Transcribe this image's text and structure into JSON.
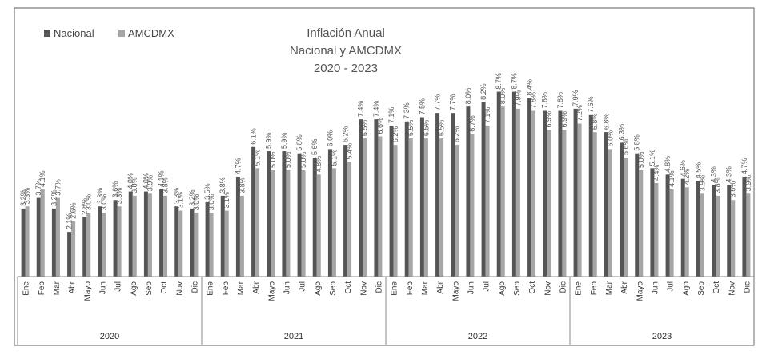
{
  "chart_data": {
    "type": "bar",
    "title": [
      "Inflación Anual",
      "Nacional y AMCDMX",
      "2020 - 2023"
    ],
    "legend": {
      "position": "top-left"
    },
    "years": [
      "2020",
      "2021",
      "2022",
      "2023"
    ],
    "months": [
      "Ene",
      "Feb",
      "Mar",
      "Abr",
      "Mayo",
      "Jun",
      "Jul",
      "Ago",
      "Sep",
      "Oct",
      "Nov",
      "Dic"
    ],
    "ylim": [
      0,
      10
    ],
    "grid": false,
    "series": [
      {
        "name": "Nacional",
        "color": "#555555",
        "values": [
          3.2,
          3.7,
          3.2,
          2.1,
          2.8,
          3.3,
          3.6,
          4.0,
          4.0,
          4.1,
          3.3,
          3.2,
          3.5,
          3.8,
          4.7,
          6.1,
          5.9,
          5.9,
          5.8,
          5.6,
          6.0,
          6.2,
          7.4,
          7.4,
          7.1,
          7.3,
          7.5,
          7.7,
          7.7,
          8.0,
          8.2,
          8.7,
          8.7,
          8.4,
          7.8,
          7.8,
          7.9,
          7.6,
          6.8,
          6.3,
          5.8,
          5.1,
          4.8,
          4.6,
          4.5,
          4.3,
          4.3,
          4.7
        ],
        "labels": [
          "3.2%",
          "3.7%",
          "3.2%",
          "2.1%",
          "2.8%",
          "3.3%",
          "3.6%",
          "4.0%",
          "4.0%",
          "4.1%",
          "3.3%",
          "3.2%",
          "3.5%",
          "3.8%",
          "4.7%",
          "6.1%",
          "5.9%",
          "5.9%",
          "5.8%",
          "5.6%",
          "6.0%",
          "6.2%",
          "7.4%",
          "7.4%",
          "7.1%",
          "7.3%",
          "7.5%",
          "7.7%",
          "7.7%",
          "8.0%",
          "8.2%",
          "8.7%",
          "8.7%",
          "8.4%",
          "7.8%",
          "7.8%",
          "7.9%",
          "7.6%",
          "6.8%",
          "6.3%",
          "5.8%",
          "5.1%",
          "4.8%",
          "4.6%",
          "4.5%",
          "4.3%",
          "4.3%",
          "4.7%"
        ]
      },
      {
        "name": "AMCDMX",
        "color": "#a6a6a6",
        "values": [
          3.3,
          4.1,
          3.7,
          2.6,
          3.0,
          3.0,
          3.3,
          3.8,
          3.9,
          3.8,
          3.1,
          3.0,
          3.0,
          3.1,
          3.8,
          5.1,
          5.0,
          5.0,
          5.0,
          4.8,
          5.1,
          5.4,
          6.5,
          6.6,
          6.2,
          6.5,
          6.5,
          6.5,
          6.2,
          6.7,
          7.1,
          8.0,
          7.9,
          7.8,
          6.9,
          6.9,
          7.2,
          6.8,
          6.0,
          5.6,
          5.0,
          4.4,
          4.1,
          4.2,
          3.9,
          3.8,
          3.6,
          3.9
        ],
        "labels": [
          "3.3%",
          "4.1%",
          "3.7%",
          "2.6%",
          "3.0%",
          "3.0%",
          "3.3%",
          "3.8%",
          "3.9%",
          "3.8%",
          "3.1%",
          "3.0%",
          "3.0%",
          "3.1%",
          "3.8%",
          "5.1%",
          "5.0%",
          "5.0%",
          "5.0%",
          "4.8%",
          "5.1%",
          "5.4%",
          "6.5%",
          "6.6%",
          "6.2%",
          "6.5%",
          "6.5%",
          "6.5%",
          "6.2%",
          "6.7%",
          "7.1%",
          "8.0%",
          "7.9%",
          "7.8%",
          "6.9%",
          "6.9%",
          "7.2%",
          "6.8%",
          "6.0%",
          "5.6%",
          "5.0%",
          "4.4%",
          "4.1%",
          "4.2%",
          "3.9%",
          "3.8%",
          "3.6%",
          "3.9%"
        ]
      }
    ]
  }
}
